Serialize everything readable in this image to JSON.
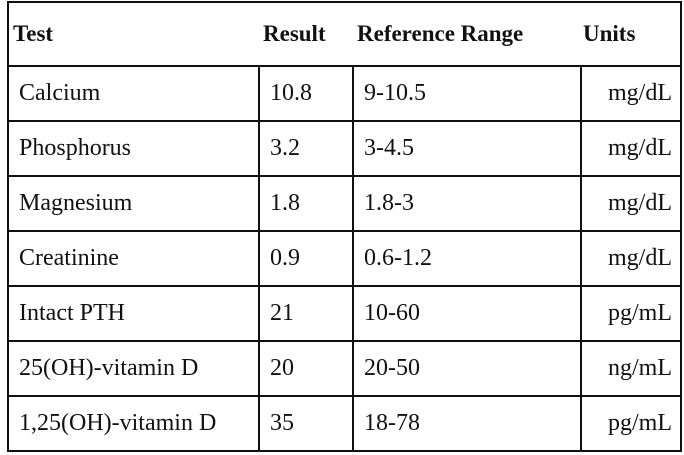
{
  "table": {
    "header": [
      "Test",
      "Result",
      "Reference Range",
      "Units"
    ],
    "rows": [
      [
        "Calcium",
        10.8,
        "9-10.5",
        "mg/dL"
      ],
      [
        "Phosphorus",
        3.2,
        "3-4.5",
        "mg/dL"
      ],
      [
        "Magnesium",
        1.8,
        "1.8-3",
        "mg/dL"
      ],
      [
        "Creatinine",
        0.9,
        "0.6-1.2",
        "mg/dL"
      ],
      [
        "Intact PTH",
        21,
        "10-60",
        "pg/mL"
      ],
      [
        "25(OH)-vitamin D",
        20,
        "20-50",
        "ng/mL"
      ],
      [
        "1,25(OH)-vitamin D",
        35,
        "18-78",
        "pg/mL"
      ]
    ]
  }
}
